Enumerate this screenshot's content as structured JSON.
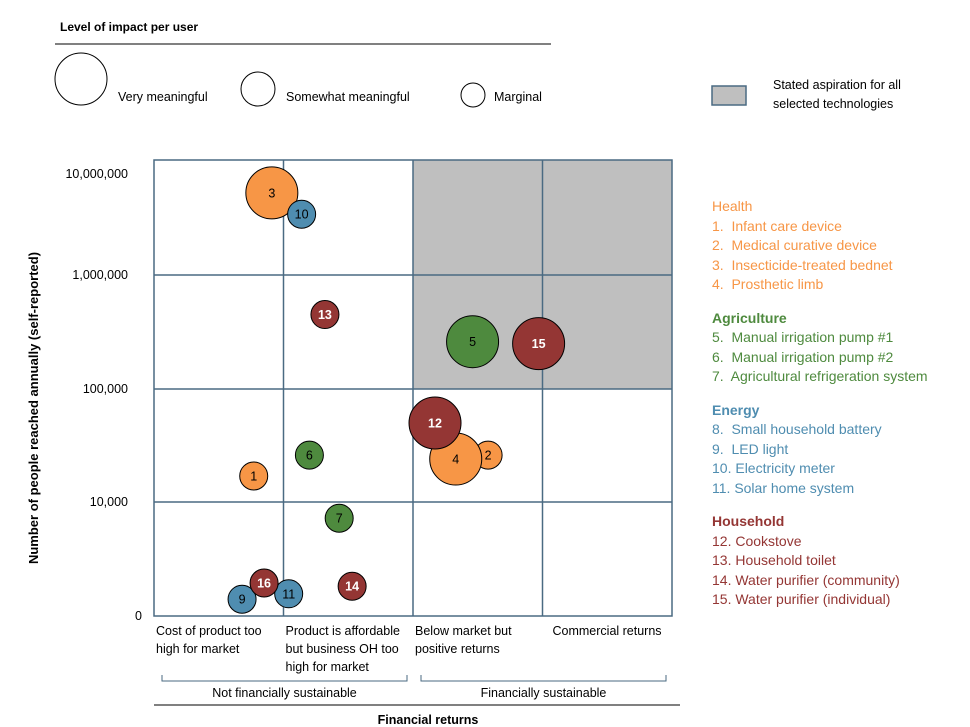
{
  "legend": {
    "title": "Level of impact per user",
    "sizes": [
      {
        "label": "Very meaningful",
        "level": 3
      },
      {
        "label": "Somewhat meaningful",
        "level": 2
      },
      {
        "label": "Marginal",
        "level": 1
      }
    ],
    "shaded_label_line1": "Stated aspiration for all",
    "shaded_label_line2": "selected technologies"
  },
  "groups": [
    {
      "name": "Health",
      "color": "#F79646",
      "items": [
        "1.  Infant care device",
        "2.  Medical curative device",
        "3.  Insecticide-treated bednet",
        "4.  Prosthetic limb"
      ]
    },
    {
      "name": "Agriculture",
      "color": "#4E8A3E",
      "items": [
        "5.  Manual irrigation pump #1",
        "6.  Manual irrigation pump #2",
        "7.  Agricultural refrigeration system"
      ]
    },
    {
      "name": "Energy",
      "color": "#4F8DB0",
      "items": [
        "8.  Small household battery",
        "9.  LED light",
        "10. Electricity meter",
        "11. Solar home system"
      ]
    },
    {
      "name": "Household",
      "color": "#943634",
      "items": [
        "12. Cookstove",
        "13. Household toilet",
        "14. Water purifier (community)",
        "15. Water purifier (individual)"
      ]
    }
  ],
  "chart_data": {
    "type": "scatter",
    "subtype": "bubble",
    "title": "",
    "xlabel": "Financial returns",
    "ylabel": "Number of people reached annually (self-reported)",
    "x_categories": [
      [
        "Cost of product too",
        "high for market"
      ],
      [
        "Product is affordable",
        "but business OH too",
        "high for market"
      ],
      [
        "Below market but",
        "positive returns"
      ],
      [
        "Commercial returns"
      ]
    ],
    "x_groups": [
      {
        "label": "Not financially sustainable",
        "span": [
          0,
          1
        ]
      },
      {
        "label": "Financially sustainable",
        "span": [
          2,
          3
        ]
      }
    ],
    "y_tick_labels": [
      "0",
      "10,000",
      "100,000",
      "1,000,000",
      "10,000,000"
    ],
    "y_scale": "log",
    "grid": true,
    "shaded_region": {
      "x_categories": [
        2,
        3
      ],
      "y_from": 100000,
      "y_to": 10000000
    },
    "points": [
      {
        "id": "1",
        "group": "Health",
        "x": 0.27,
        "y": 17000,
        "impact": 1
      },
      {
        "id": "2",
        "group": "Health",
        "x": 2.08,
        "y": 26000,
        "impact": 1
      },
      {
        "id": "3",
        "group": "Health",
        "x": 0.41,
        "y": 6500000,
        "impact": 3
      },
      {
        "id": "4",
        "group": "Health",
        "x": 1.83,
        "y": 24000,
        "impact": 3
      },
      {
        "id": "5",
        "group": "Agriculture",
        "x": 1.96,
        "y": 260000,
        "impact": 3
      },
      {
        "id": "6",
        "group": "Agriculture",
        "x": 0.7,
        "y": 26000,
        "impact": 1
      },
      {
        "id": "7",
        "group": "Agriculture",
        "x": 0.93,
        "y": 8500,
        "impact": 1
      },
      {
        "id": "9",
        "group": "Energy",
        "x": 0.18,
        "y": 1000,
        "impact": 1
      },
      {
        "id": "10",
        "group": "Energy",
        "x": 0.64,
        "y": 4000000,
        "impact": 1
      },
      {
        "id": "11",
        "group": "Energy",
        "x": 0.54,
        "y": 1500,
        "impact": 1
      },
      {
        "id": "12",
        "group": "Household",
        "x": 1.67,
        "y": 50000,
        "impact": 3
      },
      {
        "id": "13",
        "group": "Household",
        "x": 0.82,
        "y": 450000,
        "impact": 1
      },
      {
        "id": "14",
        "group": "Household",
        "x": 1.03,
        "y": 2200,
        "impact": 1
      },
      {
        "id": "15",
        "group": "Household",
        "x": 2.47,
        "y": 250000,
        "impact": 3
      },
      {
        "id": "16",
        "group": "Household",
        "x": 0.35,
        "y": 2500,
        "impact": 1
      }
    ]
  }
}
